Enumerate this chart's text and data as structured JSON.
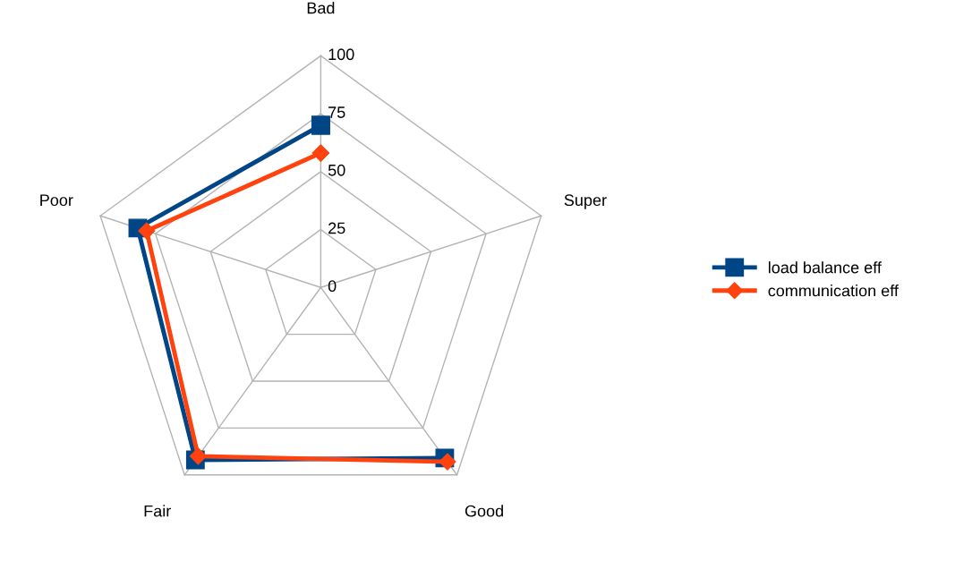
{
  "chart_data": {
    "type": "radar",
    "categories": [
      "Bad",
      "Super",
      "Good",
      "Fair",
      "Poor"
    ],
    "ylim": [
      0,
      100
    ],
    "yticks": [
      0,
      25,
      50,
      75,
      100
    ],
    "grid": true,
    "legend": "right",
    "line_style": "solid",
    "series": [
      {
        "name": "load balance eff",
        "color": "#004586",
        "marker": "square",
        "values": [
          70,
          null,
          91,
          92,
          83
        ]
      },
      {
        "name": "communication eff",
        "color": "#ff420e",
        "marker": "diamond",
        "values": [
          58,
          null,
          93,
          90,
          79
        ]
      }
    ]
  }
}
